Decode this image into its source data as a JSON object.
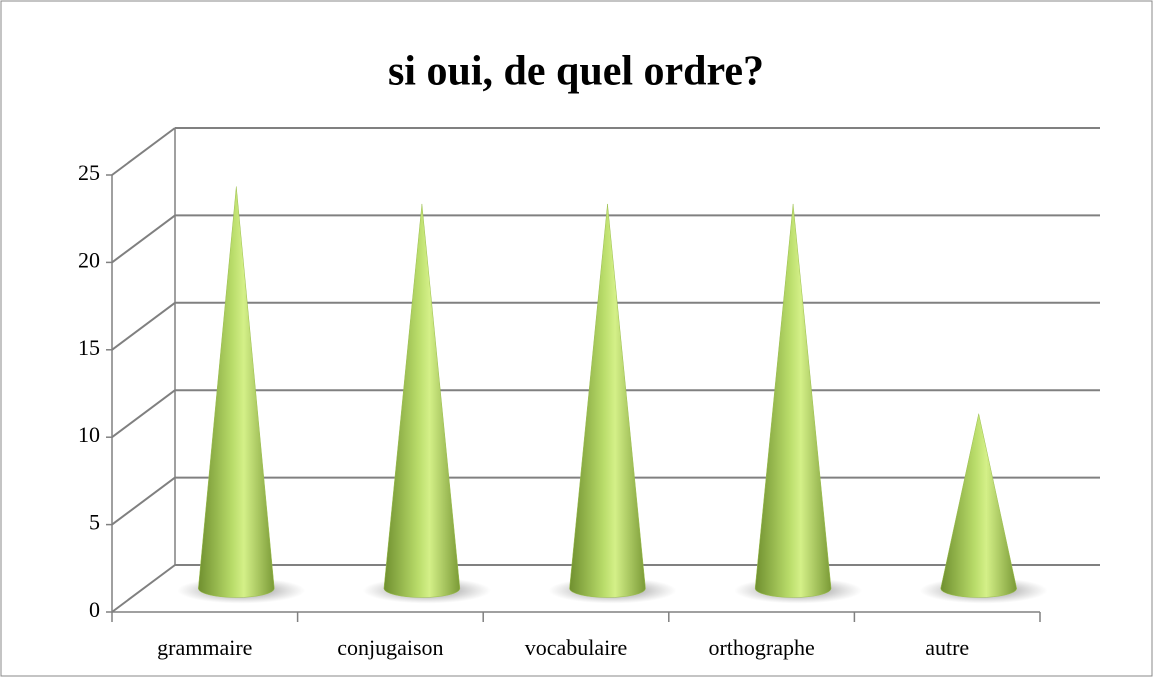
{
  "chart_data": {
    "type": "cone",
    "title": "si oui, de quel ordre?",
    "categories": [
      "grammaire",
      "conjugaison",
      "vocabulaire",
      "orthographe",
      "autre"
    ],
    "values": [
      23,
      22,
      22,
      22,
      10
    ],
    "color": "#9cbf4f",
    "ylim": [
      0,
      25
    ],
    "yticks": [
      0,
      5,
      10,
      15,
      20,
      25
    ],
    "grid": true
  }
}
